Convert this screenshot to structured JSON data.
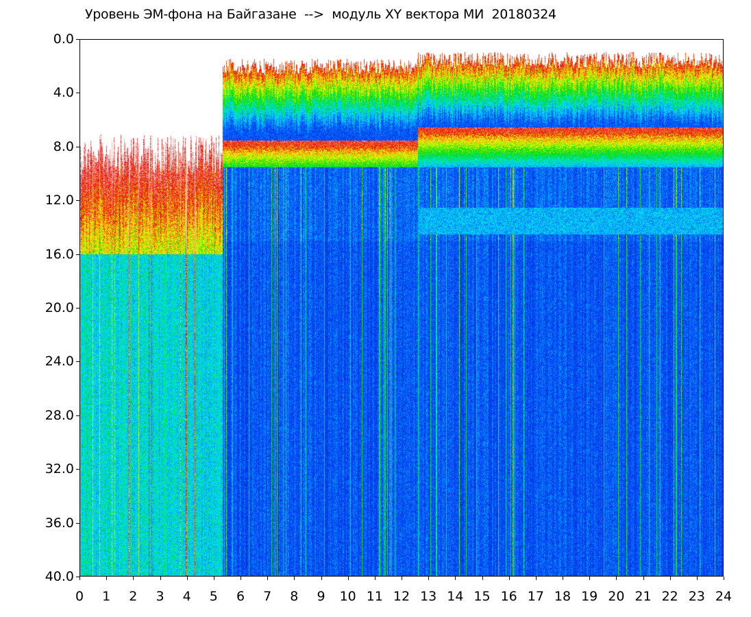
{
  "chart_data": {
    "type": "heatmap",
    "title": "Уровень ЭМ-фона на Байгазане  -->  модуль XY вектора МИ  20180324",
    "xlabel": "",
    "ylabel": "",
    "xlim": [
      0,
      24
    ],
    "ylim": [
      0,
      40
    ],
    "y_inverted": true,
    "x_ticks": [
      "0",
      "1",
      "2",
      "3",
      "4",
      "5",
      "6",
      "7",
      "8",
      "9",
      "10",
      "11",
      "12",
      "13",
      "14",
      "15",
      "16",
      "17",
      "18",
      "19",
      "20",
      "21",
      "22",
      "23",
      "24"
    ],
    "y_ticks": [
      "0.0",
      "4.0",
      "8.0",
      "12.0",
      "16.0",
      "20.0",
      "24.0",
      "28.0",
      "32.0",
      "36.0",
      "40.0"
    ],
    "colormap": [
      "#ffffff",
      "#e60000",
      "#ffff00",
      "#00dc00",
      "#00e6ff",
      "#0050ff",
      "#0820c8"
    ],
    "regions": [
      {
        "x_start": 0,
        "x_end": 5.3,
        "intensity_top_y": 8.5,
        "note": "vertical streaks full height"
      },
      {
        "x_start": 5.3,
        "x_end": 12.6,
        "intensity_top_y": 2.0,
        "bright_band_y": [
          7.5,
          9.5
        ]
      },
      {
        "x_start": 12.6,
        "x_end": 24,
        "intensity_top_y": 1.5,
        "bright_band_y": [
          6.5,
          9.5
        ],
        "secondary_band_y": [
          12.5,
          14.5
        ]
      }
    ]
  }
}
